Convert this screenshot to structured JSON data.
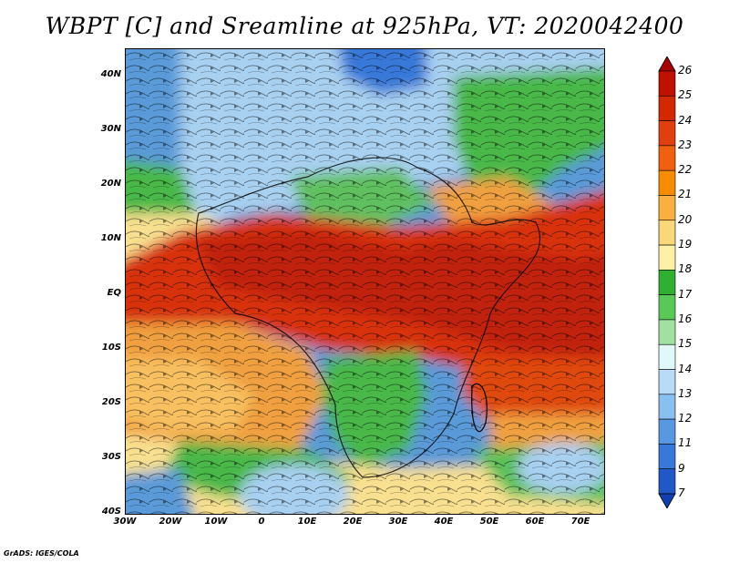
{
  "title": "WBPT [C] and Sreamline at 925hPa, VT: 2020042400",
  "footer": "GrADS: IGES/COLA",
  "lat_labels": [
    "40N",
    "30N",
    "20N",
    "10N",
    "EQ",
    "10S",
    "20S",
    "30S",
    "40S"
  ],
  "lon_labels": [
    "30W",
    "20W",
    "10W",
    "0",
    "10E",
    "20E",
    "30E",
    "40E",
    "50E",
    "60E",
    "70E"
  ],
  "colorbar": {
    "labels": [
      "26",
      "25",
      "24",
      "23",
      "22",
      "21",
      "20",
      "19",
      "18",
      "17",
      "16",
      "15",
      "14",
      "13",
      "12",
      "11",
      "9",
      "7"
    ],
    "colors": [
      "#a80000",
      "#c01000",
      "#d42800",
      "#e04010",
      "#f06010",
      "#f88c00",
      "#f8b040",
      "#f8d878",
      "#fff0a8",
      "#30b030",
      "#58c858",
      "#a0e0a0",
      "#e0f8f8",
      "#b8dcf8",
      "#88c0f0",
      "#5898e0",
      "#3878d8",
      "#2058c8",
      "#1040b0"
    ]
  },
  "colors": {
    "ocean_blue": "#5a9ad8",
    "desert_light_blue": "#a8d0f0",
    "green": "#48b848",
    "yellow": "#f8e090",
    "orange": "#f0a040",
    "red": "#d83010",
    "dark_red": "#b81808"
  }
}
